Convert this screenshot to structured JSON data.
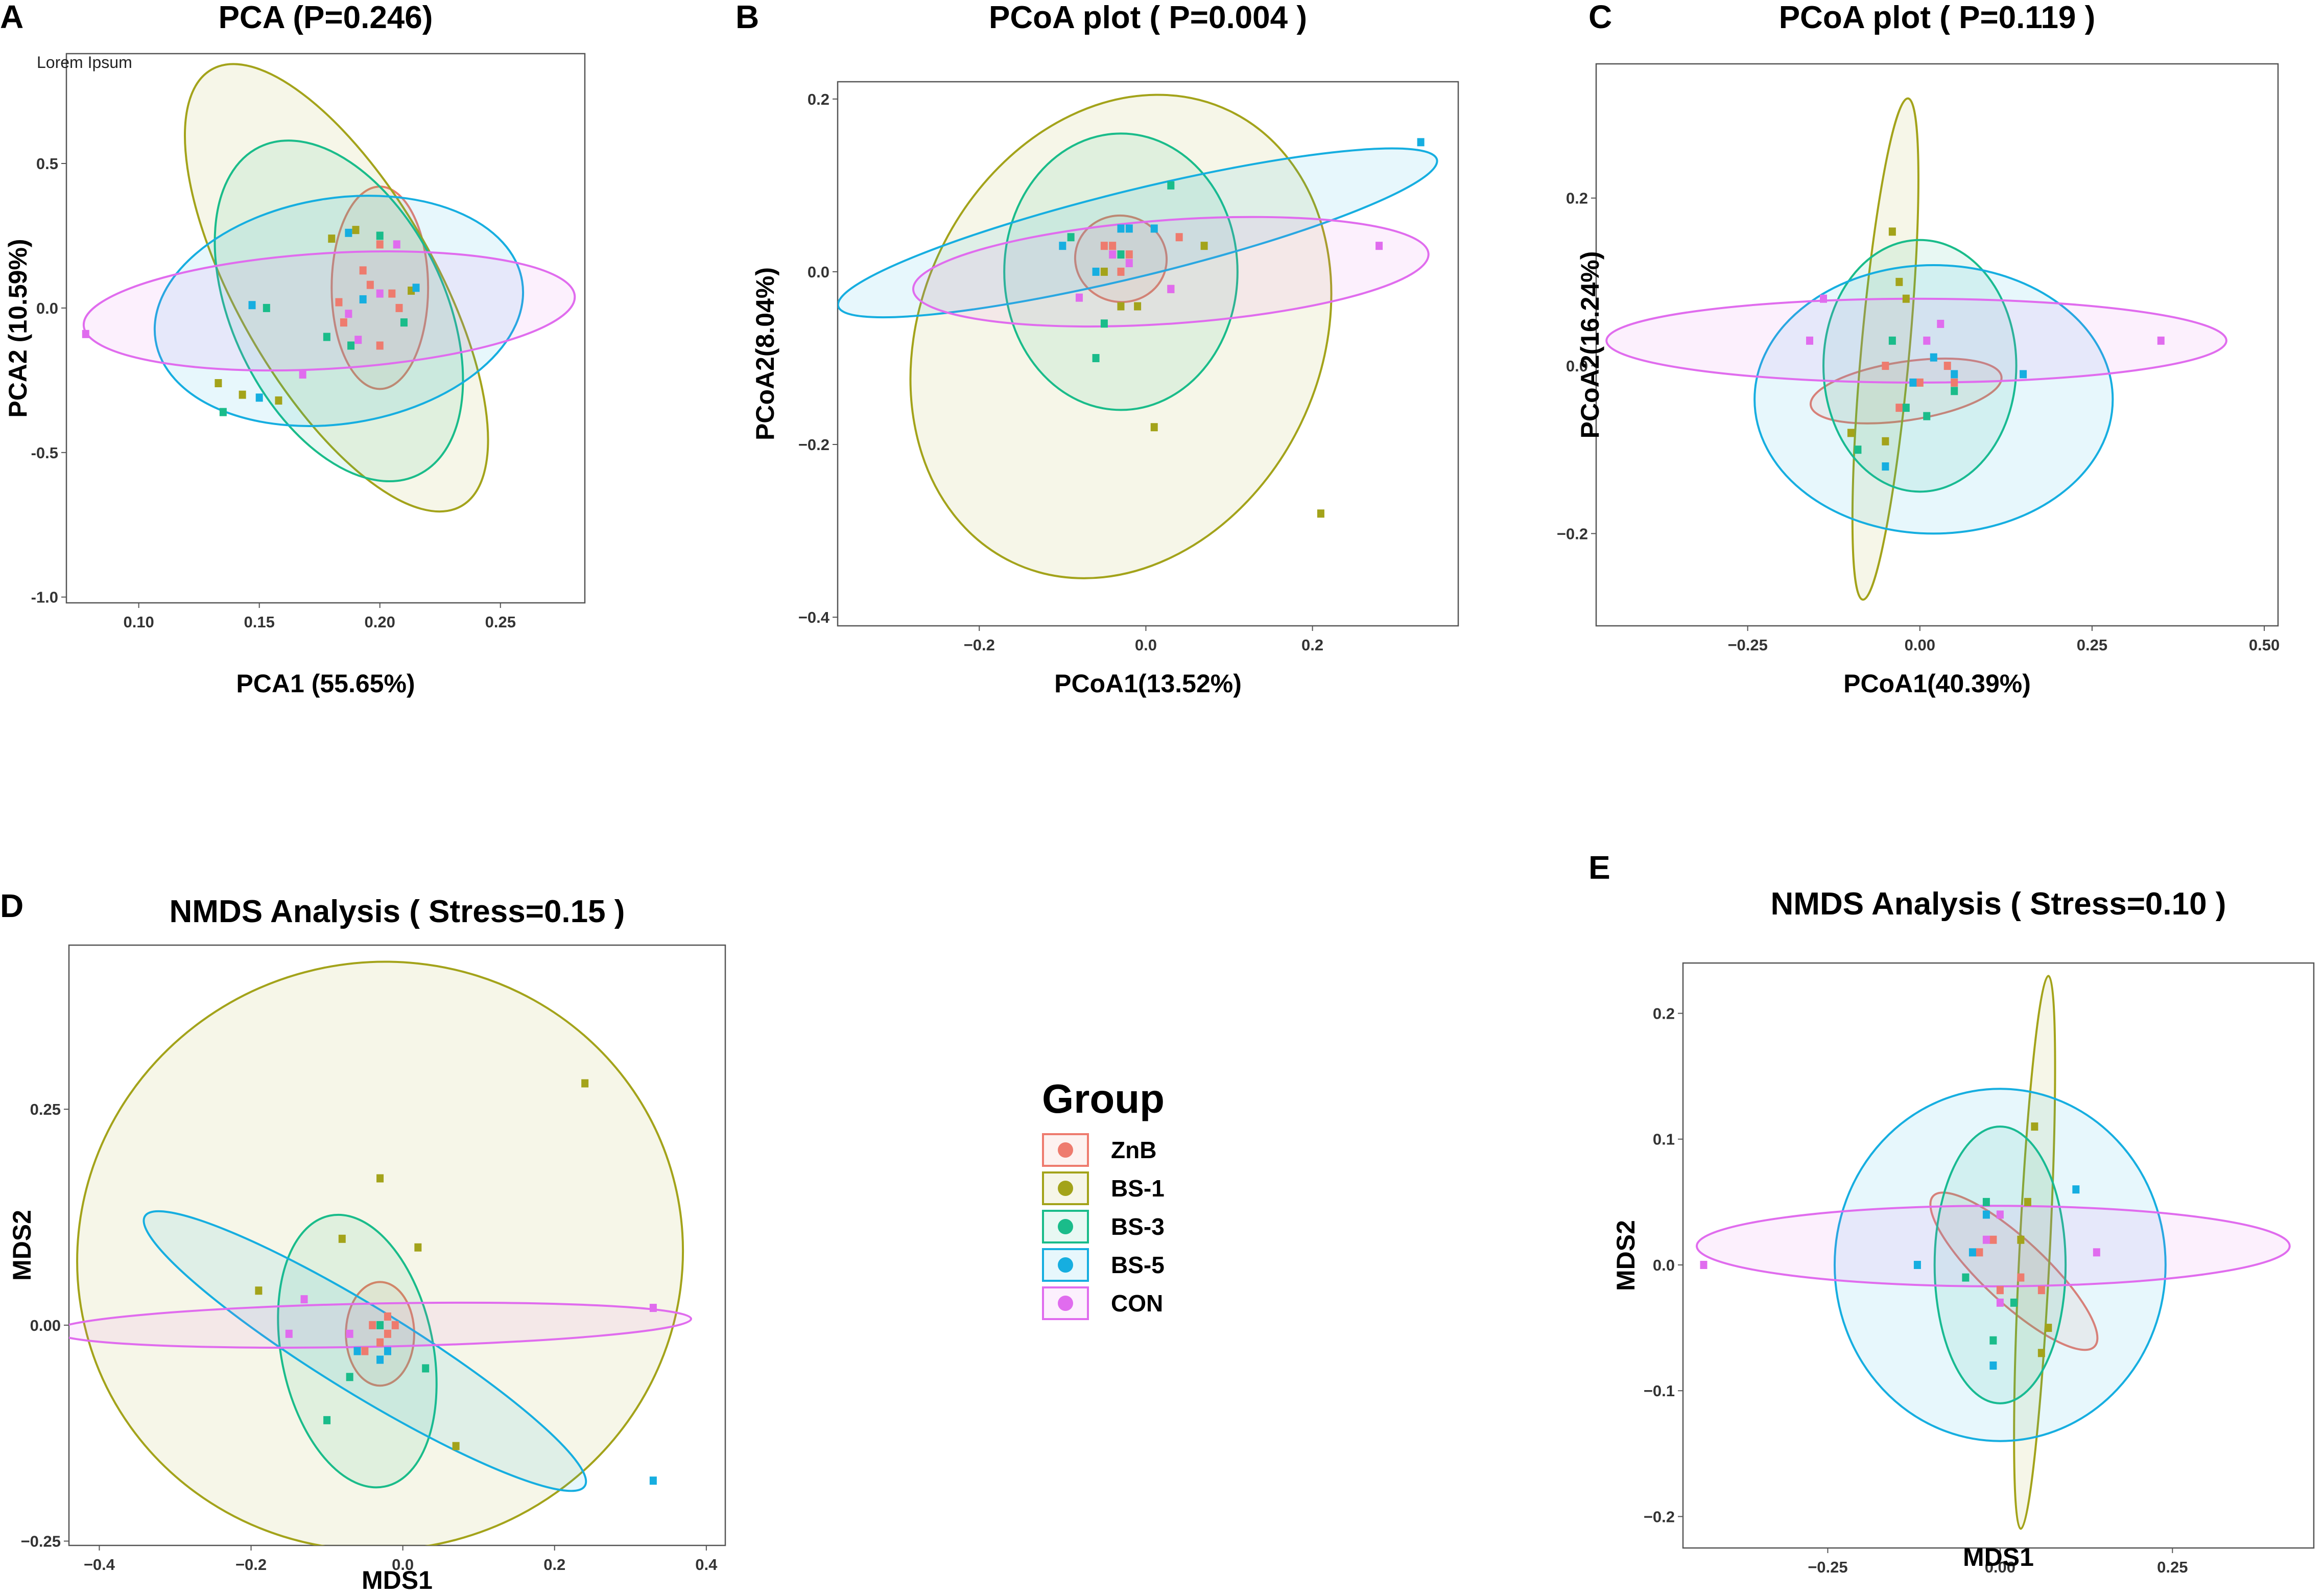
{
  "legend": {
    "title": "Group",
    "items": [
      {
        "name": "ZnB",
        "color": "#ee7b6e"
      },
      {
        "name": "BS-1",
        "color": "#a3a31a"
      },
      {
        "name": "BS-3",
        "color": "#1abc8a"
      },
      {
        "name": "BS-5",
        "color": "#16aee0"
      },
      {
        "name": "CON",
        "color": "#e06cee"
      }
    ]
  },
  "chart_data": [
    {
      "panel": "A",
      "type": "scatter",
      "title": "PCA (P=0.246)",
      "xlabel": "PCA1 (55.65%)",
      "ylabel": "PCA2 (10.59%)",
      "note": "Lorem Ipsum",
      "xlim": [
        0.07,
        0.285
      ],
      "ylim": [
        -1.02,
        0.88
      ],
      "xticks": [
        0.1,
        0.15,
        0.2,
        0.25
      ],
      "xtick_labels": [
        "0.10",
        "0.15",
        "0.20",
        "0.25"
      ],
      "yticks": [
        -1.0,
        -0.5,
        0.0,
        0.5
      ],
      "ytick_labels": [
        "-1.0",
        "-0.5",
        "0.0",
        "0.5"
      ],
      "ellipses": [
        {
          "group": "ZnB",
          "cx": 0.2,
          "cy": 0.07,
          "rx": 0.02,
          "ry": 0.35,
          "angle": 0
        },
        {
          "group": "BS-1",
          "cx": 0.182,
          "cy": 0.07,
          "rx": 0.041,
          "ry": 0.87,
          "angle": 0.52
        },
        {
          "group": "BS-3",
          "cx": 0.183,
          "cy": -0.01,
          "rx": 0.044,
          "ry": 0.63,
          "angle": 0.45
        },
        {
          "group": "BS-5",
          "cx": 0.183,
          "cy": -0.01,
          "rx": 0.077,
          "ry": 0.39,
          "angle": 0.16
        },
        {
          "group": "CON",
          "cx": 0.179,
          "cy": -0.01,
          "rx": 0.102,
          "ry": 0.2,
          "angle": 0.06
        }
      ],
      "points": [
        {
          "group": "ZnB",
          "x": 0.2,
          "y": 0.22
        },
        {
          "group": "ZnB",
          "x": 0.193,
          "y": 0.13
        },
        {
          "group": "ZnB",
          "x": 0.196,
          "y": 0.08
        },
        {
          "group": "ZnB",
          "x": 0.205,
          "y": 0.05
        },
        {
          "group": "ZnB",
          "x": 0.183,
          "y": 0.02
        },
        {
          "group": "ZnB",
          "x": 0.208,
          "y": 0.0
        },
        {
          "group": "ZnB",
          "x": 0.185,
          "y": -0.05
        },
        {
          "group": "ZnB",
          "x": 0.2,
          "y": -0.13
        },
        {
          "group": "BS-1",
          "x": 0.18,
          "y": 0.24
        },
        {
          "group": "BS-1",
          "x": 0.19,
          "y": 0.27
        },
        {
          "group": "BS-1",
          "x": 0.133,
          "y": -0.26
        },
        {
          "group": "BS-1",
          "x": 0.143,
          "y": -0.3
        },
        {
          "group": "BS-1",
          "x": 0.158,
          "y": -0.32
        },
        {
          "group": "BS-1",
          "x": 0.213,
          "y": 0.06
        },
        {
          "group": "BS-3",
          "x": 0.153,
          "y": 0.0
        },
        {
          "group": "BS-3",
          "x": 0.178,
          "y": -0.1
        },
        {
          "group": "BS-3",
          "x": 0.188,
          "y": -0.13
        },
        {
          "group": "BS-3",
          "x": 0.21,
          "y": -0.05
        },
        {
          "group": "BS-3",
          "x": 0.2,
          "y": 0.25
        },
        {
          "group": "BS-3",
          "x": 0.135,
          "y": -0.36
        },
        {
          "group": "BS-5",
          "x": 0.147,
          "y": 0.01
        },
        {
          "group": "BS-5",
          "x": 0.15,
          "y": -0.31
        },
        {
          "group": "BS-5",
          "x": 0.187,
          "y": 0.26
        },
        {
          "group": "BS-5",
          "x": 0.215,
          "y": 0.07
        },
        {
          "group": "BS-5",
          "x": 0.193,
          "y": 0.03
        },
        {
          "group": "CON",
          "x": 0.078,
          "y": -0.09
        },
        {
          "group": "CON",
          "x": 0.168,
          "y": -0.23
        },
        {
          "group": "CON",
          "x": 0.207,
          "y": 0.22
        },
        {
          "group": "CON",
          "x": 0.187,
          "y": -0.02
        },
        {
          "group": "CON",
          "x": 0.2,
          "y": 0.05
        },
        {
          "group": "CON",
          "x": 0.191,
          "y": -0.11
        }
      ]
    },
    {
      "panel": "B",
      "type": "scatter",
      "title": "PCoA plot ( P=0.004 )",
      "xlabel": "PCoA1(13.52%)",
      "ylabel": "PCoA2(8.04%)",
      "xlim": [
        -0.37,
        0.375
      ],
      "ylim": [
        -0.41,
        0.22
      ],
      "xticks": [
        -0.2,
        0.0,
        0.2
      ],
      "xtick_labels": [
        "−0.2",
        "0.0",
        "0.2"
      ],
      "yticks": [
        -0.4,
        -0.2,
        0.0,
        0.2
      ],
      "ytick_labels": [
        "−0.4",
        "−0.2",
        "0.0",
        "0.2"
      ],
      "ellipses": [
        {
          "group": "ZnB",
          "cx": -0.03,
          "cy": 0.015,
          "rx": 0.055,
          "ry": 0.05,
          "angle": -0.15
        },
        {
          "group": "BS-1",
          "cx": -0.03,
          "cy": -0.075,
          "rx": 0.24,
          "ry": 0.29,
          "angle": -0.45
        },
        {
          "group": "BS-3",
          "cx": -0.03,
          "cy": 0.0,
          "rx": 0.14,
          "ry": 0.16,
          "angle": 0
        },
        {
          "group": "BS-5",
          "cx": -0.01,
          "cy": 0.045,
          "rx": 0.37,
          "ry": 0.05,
          "angle": 0.24
        },
        {
          "group": "CON",
          "cx": 0.03,
          "cy": 0.0,
          "rx": 0.31,
          "ry": 0.06,
          "angle": 0.07
        }
      ],
      "points": [
        {
          "group": "ZnB",
          "x": -0.05,
          "y": 0.03
        },
        {
          "group": "ZnB",
          "x": -0.04,
          "y": 0.03
        },
        {
          "group": "ZnB",
          "x": -0.02,
          "y": 0.02
        },
        {
          "group": "ZnB",
          "x": 0.04,
          "y": 0.04
        },
        {
          "group": "ZnB",
          "x": 0.03,
          "y": -0.02
        },
        {
          "group": "ZnB",
          "x": -0.03,
          "y": 0.0
        },
        {
          "group": "BS-1",
          "x": 0.01,
          "y": -0.18
        },
        {
          "group": "BS-1",
          "x": 0.21,
          "y": -0.28
        },
        {
          "group": "BS-1",
          "x": -0.05,
          "y": 0.0
        },
        {
          "group": "BS-1",
          "x": 0.07,
          "y": 0.03
        },
        {
          "group": "BS-1",
          "x": -0.03,
          "y": -0.04
        },
        {
          "group": "BS-1",
          "x": -0.01,
          "y": -0.04
        },
        {
          "group": "BS-3",
          "x": -0.06,
          "y": -0.1
        },
        {
          "group": "BS-3",
          "x": 0.03,
          "y": 0.1
        },
        {
          "group": "BS-3",
          "x": -0.05,
          "y": -0.06
        },
        {
          "group": "BS-3",
          "x": -0.09,
          "y": 0.04
        },
        {
          "group": "BS-3",
          "x": -0.03,
          "y": 0.02
        },
        {
          "group": "BS-5",
          "x": 0.33,
          "y": 0.15
        },
        {
          "group": "BS-5",
          "x": -0.03,
          "y": 0.05
        },
        {
          "group": "BS-5",
          "x": -0.02,
          "y": 0.05
        },
        {
          "group": "BS-5",
          "x": 0.01,
          "y": 0.05
        },
        {
          "group": "BS-5",
          "x": -0.06,
          "y": 0.0
        },
        {
          "group": "BS-5",
          "x": -0.1,
          "y": 0.03
        },
        {
          "group": "CON",
          "x": 0.28,
          "y": 0.03
        },
        {
          "group": "CON",
          "x": -0.08,
          "y": -0.03
        },
        {
          "group": "CON",
          "x": -0.04,
          "y": 0.02
        },
        {
          "group": "CON",
          "x": 0.03,
          "y": -0.02
        },
        {
          "group": "CON",
          "x": -0.02,
          "y": 0.01
        }
      ]
    },
    {
      "panel": "C",
      "type": "scatter",
      "title": "PCoA plot ( P=0.119 )",
      "xlabel": "PCoA1(40.39%)",
      "ylabel": "PCoA2(16.24%)",
      "xlim": [
        -0.47,
        0.52
      ],
      "ylim": [
        -0.31,
        0.36
      ],
      "xticks": [
        -0.25,
        0.0,
        0.25,
        0.5
      ],
      "xtick_labels": [
        "−0.25",
        "0.00",
        "0.25",
        "0.50"
      ],
      "yticks": [
        -0.2,
        0.0,
        0.2
      ],
      "ytick_labels": [
        "−0.2",
        "0.0",
        "0.2"
      ],
      "ellipses": [
        {
          "group": "ZnB",
          "cx": -0.02,
          "cy": -0.03,
          "rx": 0.14,
          "ry": 0.035,
          "angle": 0.15
        },
        {
          "group": "BS-1",
          "cx": -0.05,
          "cy": 0.02,
          "rx": 0.035,
          "ry": 0.3,
          "angle": -0.09
        },
        {
          "group": "BS-3",
          "cx": 0.0,
          "cy": 0.0,
          "rx": 0.14,
          "ry": 0.15,
          "angle": 0
        },
        {
          "group": "BS-5",
          "cx": 0.02,
          "cy": -0.04,
          "rx": 0.26,
          "ry": 0.16,
          "angle": 0
        },
        {
          "group": "CON",
          "cx": -0.005,
          "cy": 0.03,
          "rx": 0.45,
          "ry": 0.05,
          "angle": 0
        }
      ],
      "points": [
        {
          "group": "ZnB",
          "x": -0.05,
          "y": 0.0
        },
        {
          "group": "ZnB",
          "x": -0.03,
          "y": -0.05
        },
        {
          "group": "ZnB",
          "x": 0.0,
          "y": -0.02
        },
        {
          "group": "ZnB",
          "x": 0.04,
          "y": 0.0
        },
        {
          "group": "ZnB",
          "x": 0.05,
          "y": -0.02
        },
        {
          "group": "BS-1",
          "x": -0.04,
          "y": 0.16
        },
        {
          "group": "BS-1",
          "x": -0.03,
          "y": 0.1
        },
        {
          "group": "BS-1",
          "x": -0.02,
          "y": 0.08
        },
        {
          "group": "BS-1",
          "x": -0.1,
          "y": -0.08
        },
        {
          "group": "BS-1",
          "x": -0.05,
          "y": -0.09
        },
        {
          "group": "BS-3",
          "x": -0.04,
          "y": 0.03
        },
        {
          "group": "BS-3",
          "x": -0.02,
          "y": -0.05
        },
        {
          "group": "BS-3",
          "x": 0.01,
          "y": -0.06
        },
        {
          "group": "BS-3",
          "x": -0.09,
          "y": -0.1
        },
        {
          "group": "BS-3",
          "x": 0.05,
          "y": -0.03
        },
        {
          "group": "BS-5",
          "x": -0.01,
          "y": -0.02
        },
        {
          "group": "BS-5",
          "x": 0.02,
          "y": 0.01
        },
        {
          "group": "BS-5",
          "x": 0.05,
          "y": -0.01
        },
        {
          "group": "BS-5",
          "x": -0.05,
          "y": -0.12
        },
        {
          "group": "BS-5",
          "x": 0.15,
          "y": -0.01
        },
        {
          "group": "CON",
          "x": -0.16,
          "y": 0.03
        },
        {
          "group": "CON",
          "x": -0.14,
          "y": 0.08
        },
        {
          "group": "CON",
          "x": 0.01,
          "y": 0.03
        },
        {
          "group": "CON",
          "x": 0.03,
          "y": 0.05
        },
        {
          "group": "CON",
          "x": 0.35,
          "y": 0.03
        }
      ]
    },
    {
      "panel": "D",
      "type": "scatter",
      "title": "NMDS Analysis ( Stress=0.15 )",
      "xlabel": "MDS1",
      "ylabel": "MDS2",
      "xlim": [
        -0.44,
        0.425
      ],
      "ylim": [
        -0.255,
        0.44
      ],
      "xticks": [
        -0.4,
        -0.2,
        0.0,
        0.2,
        0.4
      ],
      "xtick_labels": [
        "−0.4",
        "−0.2",
        "0.0",
        "0.2",
        "0.4"
      ],
      "yticks": [
        -0.25,
        0.0,
        0.25
      ],
      "ytick_labels": [
        "−0.25",
        "0.00",
        "0.25"
      ],
      "ellipses": [
        {
          "group": "ZnB",
          "cx": -0.03,
          "cy": -0.01,
          "rx": 0.045,
          "ry": 0.06,
          "angle": 0
        },
        {
          "group": "BS-1",
          "cx": -0.03,
          "cy": 0.08,
          "rx": 0.4,
          "ry": 0.34,
          "angle": 0.26
        },
        {
          "group": "BS-3",
          "cx": -0.06,
          "cy": -0.03,
          "rx": 0.1,
          "ry": 0.16,
          "angle": 0.2
        },
        {
          "group": "BS-5",
          "cx": -0.05,
          "cy": -0.03,
          "rx": 0.34,
          "ry": 0.05,
          "angle": -0.55
        },
        {
          "group": "CON",
          "cx": -0.04,
          "cy": 0.0,
          "rx": 0.42,
          "ry": 0.025,
          "angle": 0.02
        }
      ],
      "points": [
        {
          "group": "ZnB",
          "x": -0.04,
          "y": 0.0
        },
        {
          "group": "ZnB",
          "x": -0.03,
          "y": -0.02
        },
        {
          "group": "ZnB",
          "x": -0.02,
          "y": 0.01
        },
        {
          "group": "ZnB",
          "x": -0.05,
          "y": -0.03
        },
        {
          "group": "ZnB",
          "x": -0.02,
          "y": -0.01
        },
        {
          "group": "ZnB",
          "x": -0.01,
          "y": 0.0
        },
        {
          "group": "BS-1",
          "x": 0.24,
          "y": 0.28
        },
        {
          "group": "BS-1",
          "x": -0.03,
          "y": 0.17
        },
        {
          "group": "BS-1",
          "x": -0.08,
          "y": 0.1
        },
        {
          "group": "BS-1",
          "x": -0.19,
          "y": 0.04
        },
        {
          "group": "BS-1",
          "x": 0.02,
          "y": 0.09
        },
        {
          "group": "BS-1",
          "x": 0.07,
          "y": -0.14
        },
        {
          "group": "BS-3",
          "x": -0.1,
          "y": -0.11
        },
        {
          "group": "BS-3",
          "x": 0.03,
          "y": -0.05
        },
        {
          "group": "BS-3",
          "x": -0.07,
          "y": -0.06
        },
        {
          "group": "BS-3",
          "x": -0.03,
          "y": 0.0
        },
        {
          "group": "BS-5",
          "x": 0.33,
          "y": -0.18
        },
        {
          "group": "BS-5",
          "x": -0.03,
          "y": -0.04
        },
        {
          "group": "BS-5",
          "x": -0.02,
          "y": -0.03
        },
        {
          "group": "BS-5",
          "x": -0.06,
          "y": -0.03
        },
        {
          "group": "CON",
          "x": 0.33,
          "y": 0.02
        },
        {
          "group": "CON",
          "x": -0.13,
          "y": 0.03
        },
        {
          "group": "CON",
          "x": -0.07,
          "y": -0.01
        },
        {
          "group": "CON",
          "x": -0.15,
          "y": -0.01
        }
      ]
    },
    {
      "panel": "E",
      "type": "scatter",
      "title": "NMDS Analysis ( Stress=0.10 )",
      "xlabel": "MDS1",
      "ylabel": "MDS2",
      "xlim": [
        -0.46,
        0.455
      ],
      "ylim": [
        -0.225,
        0.24
      ],
      "xticks": [
        -0.25,
        0.0,
        0.25
      ],
      "xtick_labels": [
        "−0.25",
        "0.00",
        "0.25"
      ],
      "yticks": [
        -0.2,
        -0.1,
        0.0,
        0.1,
        0.2
      ],
      "ytick_labels": [
        "−0.2",
        "−0.1",
        "0.0",
        "0.1",
        "0.2"
      ],
      "ellipses": [
        {
          "group": "ZnB",
          "cx": 0.02,
          "cy": -0.005,
          "rx": 0.16,
          "ry": 0.025,
          "angle": -0.75
        },
        {
          "group": "BS-1",
          "cx": 0.05,
          "cy": 0.01,
          "rx": 0.022,
          "ry": 0.22,
          "angle": -0.05
        },
        {
          "group": "BS-3",
          "cx": 0.0,
          "cy": 0.0,
          "rx": 0.095,
          "ry": 0.11,
          "angle": 0
        },
        {
          "group": "BS-5",
          "cx": 0.0,
          "cy": 0.0,
          "rx": 0.24,
          "ry": 0.14,
          "angle": 0
        },
        {
          "group": "CON",
          "cx": -0.01,
          "cy": 0.015,
          "rx": 0.43,
          "ry": 0.032,
          "angle": 0
        }
      ],
      "points": [
        {
          "group": "ZnB",
          "x": -0.03,
          "y": 0.01
        },
        {
          "group": "ZnB",
          "x": 0.0,
          "y": -0.02
        },
        {
          "group": "ZnB",
          "x": 0.03,
          "y": -0.01
        },
        {
          "group": "ZnB",
          "x": -0.01,
          "y": 0.02
        },
        {
          "group": "ZnB",
          "x": 0.06,
          "y": -0.02
        },
        {
          "group": "BS-1",
          "x": 0.05,
          "y": 0.11
        },
        {
          "group": "BS-1",
          "x": 0.04,
          "y": 0.05
        },
        {
          "group": "BS-1",
          "x": 0.06,
          "y": -0.07
        },
        {
          "group": "BS-1",
          "x": 0.07,
          "y": -0.05
        },
        {
          "group": "BS-1",
          "x": 0.03,
          "y": 0.02
        },
        {
          "group": "BS-3",
          "x": -0.02,
          "y": 0.05
        },
        {
          "group": "BS-3",
          "x": -0.05,
          "y": -0.01
        },
        {
          "group": "BS-3",
          "x": -0.01,
          "y": -0.06
        },
        {
          "group": "BS-3",
          "x": 0.02,
          "y": -0.03
        },
        {
          "group": "BS-5",
          "x": 0.11,
          "y": 0.06
        },
        {
          "group": "BS-5",
          "x": -0.02,
          "y": 0.04
        },
        {
          "group": "BS-5",
          "x": -0.12,
          "y": 0.0
        },
        {
          "group": "BS-5",
          "x": -0.01,
          "y": -0.08
        },
        {
          "group": "BS-5",
          "x": -0.04,
          "y": 0.01
        },
        {
          "group": "CON",
          "x": -0.43,
          "y": 0.0
        },
        {
          "group": "CON",
          "x": 0.14,
          "y": 0.01
        },
        {
          "group": "CON",
          "x": 0.0,
          "y": 0.04
        },
        {
          "group": "CON",
          "x": -0.02,
          "y": 0.02
        },
        {
          "group": "CON",
          "x": 0.0,
          "y": -0.03
        }
      ]
    }
  ]
}
